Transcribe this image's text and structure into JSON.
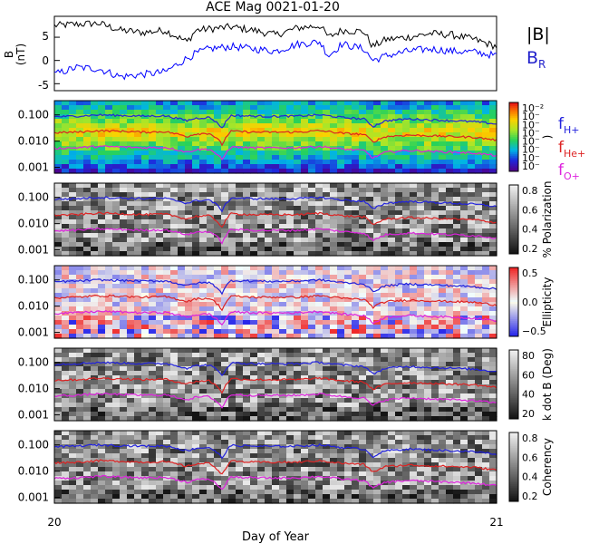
{
  "title": "ACE Mag 0021-01-20",
  "x_label": "Day of Year",
  "x_ticks": [
    "20",
    "21"
  ],
  "mag_panel": {
    "ylabel_line1": "B",
    "ylabel_line2": "(nT)",
    "yticks": [
      "5",
      "0",
      "-5"
    ],
    "legend_b": "|B|",
    "legend_br": "B",
    "legend_br_sub": "R",
    "colors": {
      "b": "#000000",
      "br": "#0000ff"
    }
  },
  "freq_legend": [
    {
      "label": "f",
      "sub": "H+",
      "color": "#2222dd"
    },
    {
      "label": "f",
      "sub": "He+",
      "color": "#dd2222"
    },
    {
      "label": "f",
      "sub": "O+",
      "color": "#dd22dd"
    }
  ],
  "spectral_panels": [
    {
      "name": "power",
      "yticks": [
        "0.100",
        "0.010",
        "0.001"
      ],
      "colorbar": "rainbow",
      "cb_ticks": [
        "10⁻²",
        "10⁻",
        "10⁻",
        "10⁻",
        "10⁻",
        "10⁻",
        "10⁻",
        "10⁻"
      ],
      "cb_label": ")"
    },
    {
      "name": "polarization",
      "yticks": [
        "0.100",
        "0.010",
        "0.001"
      ],
      "colorbar": "gray",
      "cb_ticks": [
        "0.8",
        "0.6",
        "0.4",
        "0.2"
      ],
      "cb_label": "% Polarization"
    },
    {
      "name": "ellipticity",
      "yticks": [
        "0.100",
        "0.010",
        "0.001"
      ],
      "colorbar": "bwr",
      "cb_ticks": [
        "0.5",
        "0.0",
        "−0.5"
      ],
      "cb_label": "Ellipticity"
    },
    {
      "name": "kdotb",
      "yticks": [
        "0.100",
        "0.010",
        "0.001"
      ],
      "colorbar": "gray",
      "cb_ticks": [
        "80",
        "60",
        "40",
        "20"
      ],
      "cb_label": "k dot B (Deg)"
    },
    {
      "name": "coherency",
      "yticks": [
        "0.100",
        "0.010",
        "0.001"
      ],
      "colorbar": "gray",
      "cb_ticks": [
        "0.8",
        "0.6",
        "0.4",
        "0.2"
      ],
      "cb_label": "Coherency"
    }
  ],
  "chart_data": {
    "type": "line",
    "title": "ACE Mag 0021-01-20",
    "xlabel": "Day of Year",
    "xlim": [
      20,
      21
    ],
    "mag": {
      "ylim": [
        -6.5,
        9.5
      ],
      "x": [
        20.0,
        20.05,
        20.1,
        20.15,
        20.2,
        20.25,
        20.3,
        20.32,
        20.35,
        20.4,
        20.45,
        20.5,
        20.55,
        20.6,
        20.62,
        20.65,
        20.7,
        20.72,
        20.75,
        20.8,
        20.85,
        20.9,
        20.95,
        21.0
      ],
      "series": [
        {
          "name": "|B|",
          "values": [
            7.5,
            7.8,
            8.0,
            6.5,
            6.0,
            6.5,
            4.0,
            6.5,
            6.8,
            7.2,
            6.5,
            5.5,
            7.0,
            7.5,
            5.0,
            6.5,
            6.2,
            3.0,
            4.5,
            5.0,
            5.8,
            5.5,
            4.5,
            3.0
          ]
        },
        {
          "name": "B",
          "values": [
            -3.0,
            -1.5,
            -1.8,
            -3.5,
            -3.0,
            -2.5,
            0.5,
            1.5,
            2.5,
            3.0,
            2.5,
            2.0,
            3.5,
            4.0,
            1.0,
            3.5,
            2.5,
            0.0,
            1.0,
            2.0,
            2.5,
            2.0,
            1.8,
            1.0
          ]
        }
      ]
    },
    "frequencies": {
      "yscale": "log",
      "ylim": [
        0.0006,
        0.35
      ],
      "x": [
        20.0,
        20.05,
        20.1,
        20.15,
        20.2,
        20.25,
        20.3,
        20.32,
        20.35,
        20.38,
        20.4,
        20.45,
        20.5,
        20.55,
        20.6,
        20.65,
        20.7,
        20.72,
        20.75,
        20.8,
        20.85,
        20.9,
        20.95,
        21.0
      ],
      "series": [
        {
          "name": "fH+",
          "values": [
            0.085,
            0.09,
            0.1,
            0.095,
            0.09,
            0.092,
            0.06,
            0.075,
            0.08,
            0.03,
            0.095,
            0.09,
            0.088,
            0.09,
            0.1,
            0.08,
            0.07,
            0.035,
            0.06,
            0.07,
            0.065,
            0.06,
            0.055,
            0.045
          ]
        },
        {
          "name": "fHe+",
          "values": [
            0.021,
            0.022,
            0.025,
            0.024,
            0.022,
            0.023,
            0.015,
            0.019,
            0.02,
            0.007,
            0.024,
            0.022,
            0.022,
            0.022,
            0.025,
            0.02,
            0.018,
            0.009,
            0.015,
            0.017,
            0.016,
            0.015,
            0.014,
            0.011
          ]
        },
        {
          "name": "fO+",
          "values": [
            0.0053,
            0.0056,
            0.0063,
            0.006,
            0.0056,
            0.0058,
            0.0038,
            0.0047,
            0.005,
            0.0018,
            0.006,
            0.0056,
            0.0055,
            0.0056,
            0.0063,
            0.005,
            0.0044,
            0.0022,
            0.0038,
            0.0044,
            0.0041,
            0.0038,
            0.0035,
            0.0028
          ]
        }
      ]
    }
  }
}
